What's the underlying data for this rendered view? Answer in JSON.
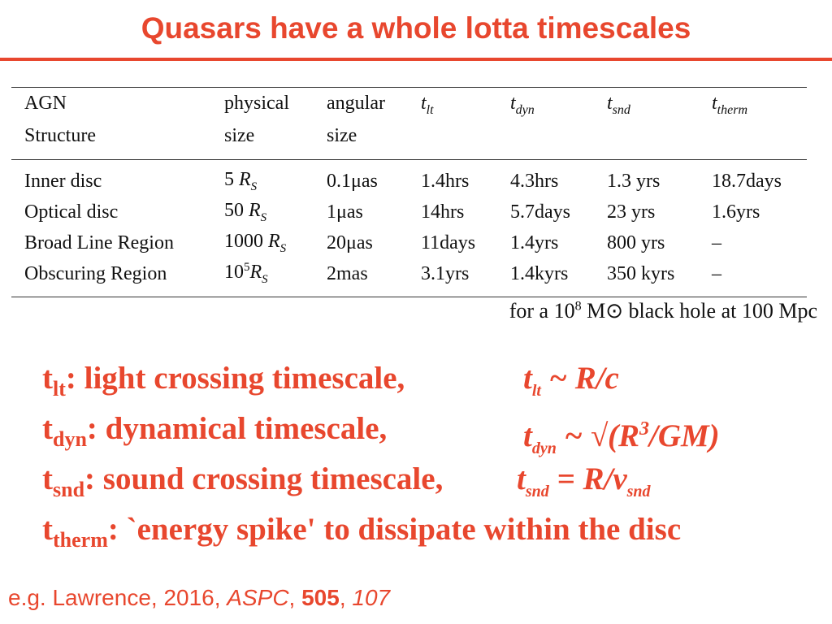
{
  "title": "Quasars have a whole lotta timescales",
  "table": {
    "header_row1": [
      "AGN",
      "physical",
      "angular",
      "t",
      "t",
      "t",
      "t"
    ],
    "header_row2": [
      "Structure",
      "size",
      "size",
      "",
      "",
      "",
      ""
    ],
    "header_subs": [
      "lt",
      "dyn",
      "snd",
      "therm"
    ],
    "rows": [
      {
        "name": "Inner disc",
        "size_num": "5",
        "size_unit": "R",
        "size_sub": "S",
        "size_exp": "",
        "angular": "0.1μas",
        "tlt": "1.4hrs",
        "tdyn": "4.3hrs",
        "tsnd": "1.3 yrs",
        "ttherm": "18.7days"
      },
      {
        "name": "Optical disc",
        "size_num": "50",
        "size_unit": "R",
        "size_sub": "S",
        "size_exp": "",
        "angular": "1μas",
        "tlt": "14hrs",
        "tdyn": "5.7days",
        "tsnd": "23 yrs",
        "ttherm": "1.6yrs"
      },
      {
        "name": "Broad Line Region",
        "size_num": "1000",
        "size_unit": "R",
        "size_sub": "S",
        "size_exp": "",
        "angular": "20μas",
        "tlt": "11days",
        "tdyn": "1.4yrs",
        "tsnd": "800 yrs",
        "ttherm": "–"
      },
      {
        "name": "Obscuring Region",
        "size_num": "10",
        "size_unit": "R",
        "size_sub": "S",
        "size_exp": "5",
        "angular": "2mas",
        "tlt": "3.1yrs",
        "tdyn": "1.4kyrs",
        "tsnd": "350 kyrs",
        "ttherm": "–"
      }
    ]
  },
  "note": {
    "pre": "for a 10",
    "exp": "8",
    "post": " M⊙ black hole at 100 Mpc"
  },
  "definitions": [
    {
      "t": "t",
      "sub": "lt",
      "text": ": light crossing timescale,",
      "f_t": "t",
      "f_sub": "lt",
      "f_rest": " ~ R/c",
      "f_sup": "",
      "f_end": ""
    },
    {
      "t": "t",
      "sub": "dyn",
      "text": ": dynamical timescale,",
      "f_t": "t",
      "f_sub": "dyn",
      "f_rest": " ~ √(R",
      "f_sup": "3",
      "f_end": "/GM)"
    },
    {
      "t": "t",
      "sub": "snd",
      "text": ": sound crossing timescale,",
      "f_t": "t",
      "f_sub": "snd",
      "f_rest": " = R/v",
      "f_sup": "",
      "f_end": "",
      "f_end_sub": "snd"
    },
    {
      "t": "t",
      "sub": "therm",
      "text": ": `energy spike' to dissipate within the disc"
    }
  ],
  "reference": {
    "pre": "e.g. Lawrence, 2016, ",
    "journal": "ASPC",
    "sep": ", ",
    "volume": "505",
    "sep2": ", ",
    "page": "107"
  }
}
